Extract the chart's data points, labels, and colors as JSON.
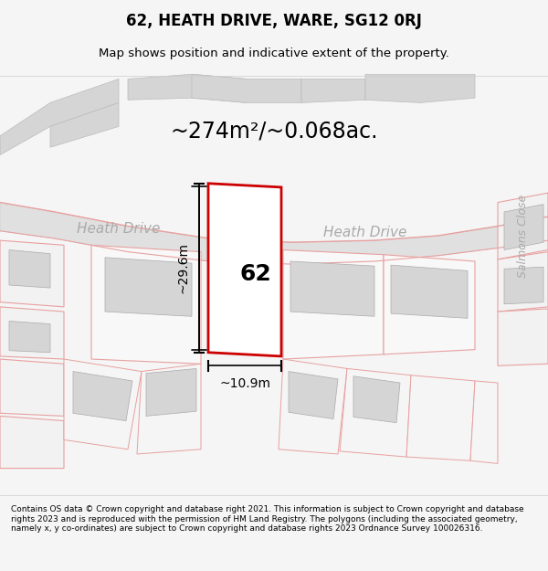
{
  "title": "62, HEATH DRIVE, WARE, SG12 0RJ",
  "subtitle": "Map shows position and indicative extent of the property.",
  "area_text": "~274m²/~0.068ac.",
  "label_62": "62",
  "dim_height": "~29.6m",
  "dim_width": "~10.9m",
  "road_label_left": "Heath Drive",
  "road_label_right": "Heath Drive",
  "road_label_vertical": "Salmons Close",
  "footer": "Contains OS data © Crown copyright and database right 2021. This information is subject to Crown copyright and database rights 2023 and is reproduced with the permission of HM Land Registry. The polygons (including the associated geometry, namely x, y co-ordinates) are subject to Crown copyright and database rights 2023 Ordnance Survey 100026316.",
  "bg_color": "#f5f5f5",
  "map_bg": "#ffffff",
  "road_color": "#cccccc",
  "plot_outline_color": "#cc0000",
  "plot_fill": "#ffffff",
  "pink_line_color": "#e8a0a0",
  "gray_fill": "#d8d8d8",
  "light_gray": "#e8e8e8"
}
